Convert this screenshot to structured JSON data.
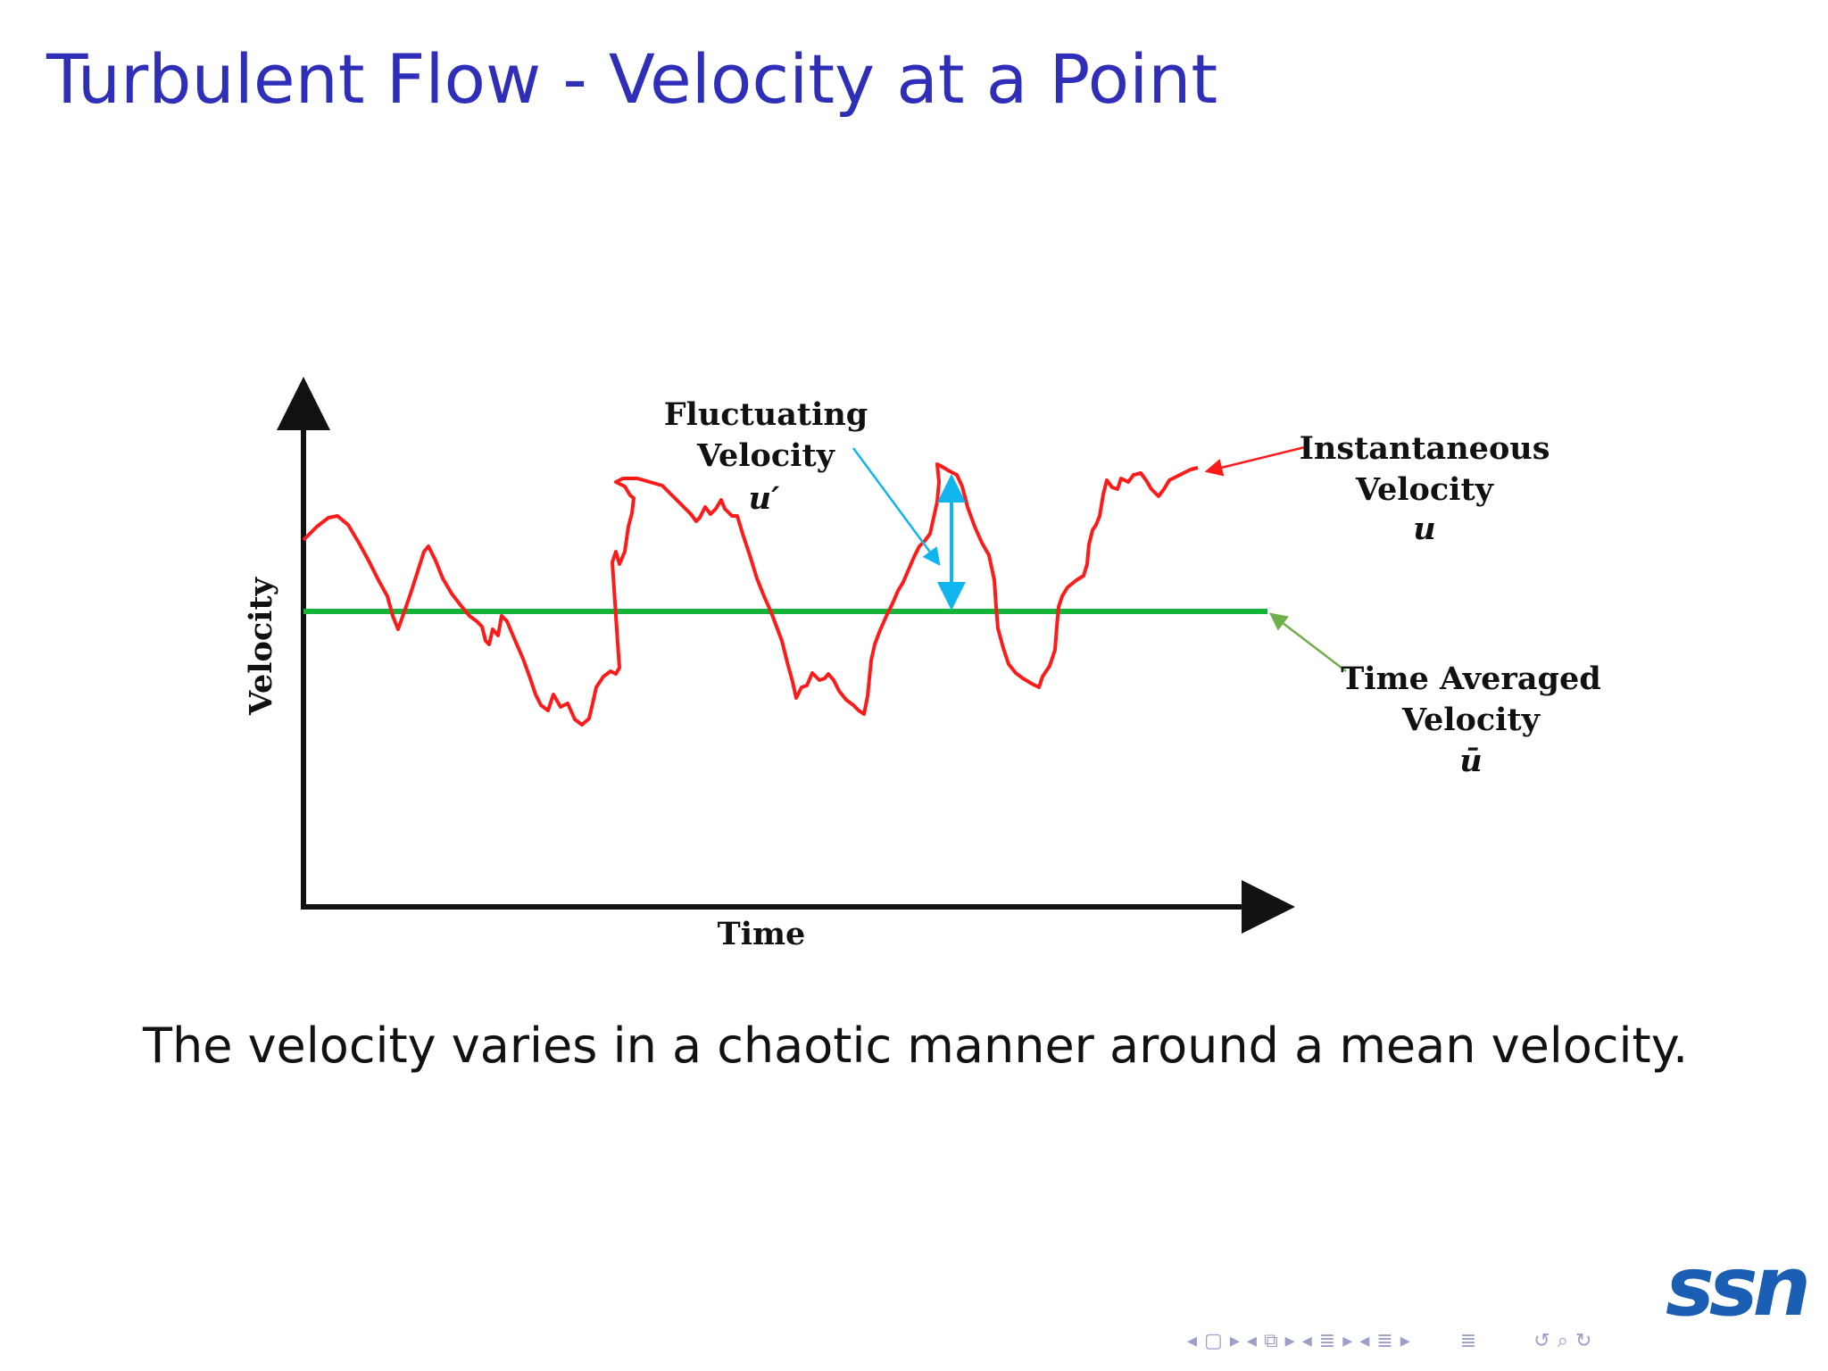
{
  "slide": {
    "title": "Turbulent Flow - Velocity at a Point",
    "caption": "The velocity varies in a chaotic manner around a mean velocity."
  },
  "figure": {
    "axis_y_label": "Velocity",
    "axis_x_label": "Time",
    "fluctuating": {
      "line1": "Fluctuating",
      "line2": "Velocity",
      "symbol": "u′"
    },
    "instantaneous": {
      "line1": "Instantaneous",
      "line2": "Velocity",
      "symbol": "u"
    },
    "average": {
      "line1": "Time Averaged",
      "line2": "Velocity",
      "symbol": "ū"
    },
    "colors": {
      "instantaneous": "#ff1a1a",
      "average": "#14b33a",
      "fluctuation_arrow": "#11b5ee",
      "average_pointer": "#6fb04a"
    }
  },
  "logo": {
    "text": "ssn",
    "color": "#1b5fb5"
  },
  "navigation": {
    "icons": [
      "arrow-left-icon",
      "frame-icon",
      "arrow-right-icon",
      "arrow-left-icon",
      "subsection-icon",
      "arrow-right-icon",
      "arrow-left-icon",
      "section-icon",
      "arrow-right-icon",
      "arrow-left-icon",
      "toc-icon",
      "arrow-right-icon",
      "align-icon",
      "undo-icon",
      "search-icon",
      "redo-icon"
    ]
  }
}
